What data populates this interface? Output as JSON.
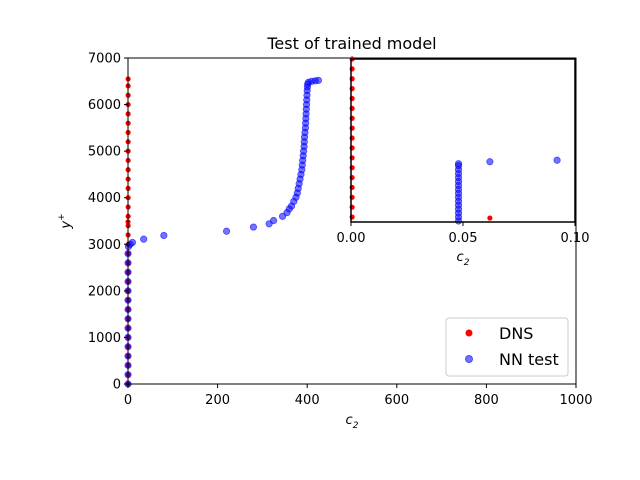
{
  "chart_data": [
    {
      "type": "scatter",
      "title": "Test of trained model",
      "xlabel": "c",
      "xlabel_sub": "2",
      "ylabel": "y",
      "ylabel_sup": "+",
      "xlim": [
        0,
        1000
      ],
      "ylim": [
        0,
        7000
      ],
      "xticks": [
        0,
        200,
        400,
        600,
        800,
        1000
      ],
      "yticks": [
        0,
        1000,
        2000,
        3000,
        4000,
        5000,
        6000,
        7000
      ],
      "legend": {
        "placement": "lower-right",
        "entries": [
          "DNS",
          "NN test"
        ]
      },
      "colors": {
        "DNS": "#ff0000",
        "NN test": "#0000ff"
      },
      "series": [
        {
          "name": "DNS",
          "points": [
            [
              0.3,
              0
            ],
            [
              0.3,
              200
            ],
            [
              0.3,
              400
            ],
            [
              0.3,
              600
            ],
            [
              0.3,
              800
            ],
            [
              0.3,
              1000
            ],
            [
              0.3,
              1200
            ],
            [
              0.3,
              1400
            ],
            [
              0.3,
              1600
            ],
            [
              0.3,
              1800
            ],
            [
              0.3,
              2000
            ],
            [
              0.3,
              2200
            ],
            [
              0.3,
              2400
            ],
            [
              0.3,
              2600
            ],
            [
              0.3,
              2800
            ],
            [
              0.3,
              3000
            ],
            [
              0.3,
              3200
            ],
            [
              0.3,
              3400
            ],
            [
              0.3,
              3600
            ],
            [
              0.3,
              3800
            ],
            [
              0.3,
              4000
            ],
            [
              0.3,
              4200
            ],
            [
              0.3,
              4400
            ],
            [
              0.3,
              4600
            ],
            [
              0.3,
              4800
            ],
            [
              0.3,
              5000
            ],
            [
              0.3,
              5200
            ],
            [
              0.3,
              5400
            ],
            [
              0.3,
              5600
            ],
            [
              0.3,
              5800
            ],
            [
              0.3,
              6000
            ],
            [
              0.3,
              6200
            ],
            [
              0.3,
              6400
            ],
            [
              0.3,
              6550
            ],
            [
              0.062,
              3480
            ]
          ]
        },
        {
          "name": "NN test",
          "points": [
            [
              0.05,
              0
            ],
            [
              0.05,
              200
            ],
            [
              0.05,
              400
            ],
            [
              0.05,
              600
            ],
            [
              0.05,
              800
            ],
            [
              0.05,
              1000
            ],
            [
              0.05,
              1200
            ],
            [
              0.05,
              1400
            ],
            [
              0.05,
              1600
            ],
            [
              0.05,
              1800
            ],
            [
              0.05,
              2000
            ],
            [
              0.05,
              2200
            ],
            [
              0.05,
              2400
            ],
            [
              0.05,
              2600
            ],
            [
              0.05,
              2800
            ],
            [
              1,
              2950
            ],
            [
              5,
              3000
            ],
            [
              10,
              3040
            ],
            [
              35,
              3110
            ],
            [
              80,
              3190
            ],
            [
              220,
              3280
            ],
            [
              280,
              3370
            ],
            [
              315,
              3440
            ],
            [
              325,
              3510
            ],
            [
              345,
              3600
            ],
            [
              355,
              3680
            ],
            [
              360,
              3760
            ],
            [
              365,
              3820
            ],
            [
              370,
              3920
            ],
            [
              375,
              4010
            ],
            [
              378,
              4100
            ],
            [
              380,
              4200
            ],
            [
              382,
              4300
            ],
            [
              384,
              4400
            ],
            [
              386,
              4500
            ],
            [
              388,
              4600
            ],
            [
              389,
              4700
            ],
            [
              390,
              4800
            ],
            [
              391,
              4900
            ],
            [
              392,
              5000
            ],
            [
              393,
              5100
            ],
            [
              393.5,
              5200
            ],
            [
              394,
              5300
            ],
            [
              395,
              5400
            ],
            [
              396,
              5500
            ],
            [
              396.5,
              5600
            ],
            [
              397,
              5700
            ],
            [
              397.5,
              5800
            ],
            [
              398,
              5900
            ],
            [
              398.5,
              6000
            ],
            [
              399,
              6100
            ],
            [
              399.5,
              6200
            ],
            [
              400,
              6300
            ],
            [
              400.5,
              6380
            ],
            [
              401,
              6440
            ],
            [
              403,
              6480
            ],
            [
              410,
              6500
            ],
            [
              418,
              6510
            ],
            [
              425,
              6520
            ]
          ]
        }
      ]
    },
    {
      "type": "scatter",
      "inset": true,
      "xlabel": "c",
      "xlabel_sub": "2",
      "xlim": [
        0,
        0.1
      ],
      "ylim": [
        3400,
        6700
      ],
      "xticks": [
        "0.00",
        "0.05",
        "0.10"
      ],
      "series": [
        {
          "name": "DNS",
          "points": [
            [
              0.0005,
              3500
            ],
            [
              0.0005,
              3700
            ],
            [
              0.0005,
              3900
            ],
            [
              0.0005,
              4100
            ],
            [
              0.0005,
              4300
            ],
            [
              0.0005,
              4500
            ],
            [
              0.0005,
              4700
            ],
            [
              0.0005,
              4900
            ],
            [
              0.0005,
              5100
            ],
            [
              0.0005,
              5300
            ],
            [
              0.0005,
              5500
            ],
            [
              0.0005,
              5700
            ],
            [
              0.0005,
              5900
            ],
            [
              0.0005,
              6100
            ],
            [
              0.0005,
              6300
            ],
            [
              0.0005,
              6500
            ],
            [
              0.0005,
              6700
            ],
            [
              0.062,
              3480
            ]
          ]
        },
        {
          "name": "NN test",
          "points": [
            [
              0.048,
              3420
            ],
            [
              0.048,
              3500
            ],
            [
              0.048,
              3580
            ],
            [
              0.048,
              3660
            ],
            [
              0.048,
              3740
            ],
            [
              0.048,
              3820
            ],
            [
              0.048,
              3900
            ],
            [
              0.048,
              3980
            ],
            [
              0.048,
              4060
            ],
            [
              0.048,
              4140
            ],
            [
              0.048,
              4220
            ],
            [
              0.048,
              4300
            ],
            [
              0.048,
              4380
            ],
            [
              0.048,
              4460
            ],
            [
              0.048,
              4540
            ],
            [
              0.048,
              4580
            ],
            [
              0.062,
              4620
            ],
            [
              0.092,
              4650
            ]
          ]
        }
      ]
    }
  ]
}
